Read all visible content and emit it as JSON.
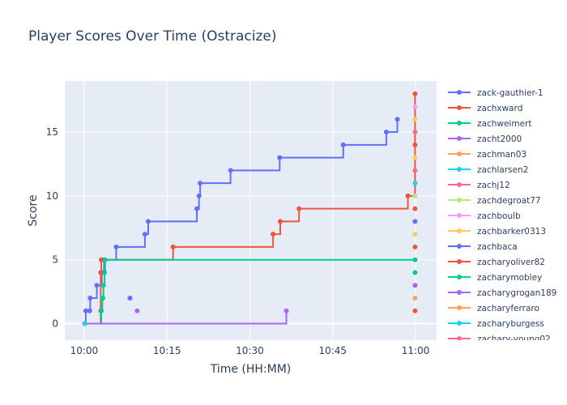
{
  "chart_data": {
    "type": "line",
    "title": "Player Scores Over Time (Ostracize)",
    "xlabel": "Time (HH:MM)",
    "ylabel": "Score",
    "x_ticks": [
      "10:00",
      "10:15",
      "10:30",
      "10:45",
      "11:00"
    ],
    "x_tick_minutes": [
      0,
      15,
      30,
      45,
      60
    ],
    "y_ticks": [
      "0",
      "5",
      "10",
      "15"
    ],
    "y_tick_values": [
      0,
      5,
      10,
      15
    ],
    "xlim_minutes": [
      -3.5,
      63.8
    ],
    "ylim": [
      -1.3,
      19.0
    ],
    "grid": true,
    "legend_placement": "right",
    "line_shape": "step-after",
    "series": [
      {
        "name": "zack-gauthier-1",
        "color": "#636efa",
        "points": [
          [
            0.1,
            0
          ],
          [
            0.3,
            1
          ],
          [
            1.0,
            1
          ],
          [
            1.1,
            2
          ],
          [
            2.3,
            3
          ],
          [
            3.2,
            4
          ],
          [
            3.6,
            5
          ],
          [
            5.8,
            6
          ],
          [
            11.0,
            7
          ],
          [
            11.6,
            8
          ],
          [
            20.4,
            9
          ],
          [
            20.8,
            10
          ],
          [
            21.0,
            11
          ],
          [
            26.5,
            12
          ],
          [
            35.4,
            13
          ],
          [
            46.9,
            14
          ],
          [
            54.7,
            15
          ],
          [
            56.7,
            16
          ]
        ]
      },
      {
        "name": "zachxward",
        "color": "#ef553b",
        "points": [
          [
            0.1,
            0
          ],
          [
            3.0,
            1
          ],
          [
            3.0,
            4
          ],
          [
            3.1,
            5
          ],
          [
            3.2,
            5
          ],
          [
            16.1,
            6
          ],
          [
            34.2,
            7
          ],
          [
            35.5,
            8
          ],
          [
            38.9,
            9
          ],
          [
            58.6,
            10
          ],
          [
            59.9,
            18
          ]
        ]
      },
      {
        "name": "zachweimert",
        "color": "#00cc96",
        "points": [
          [
            0.1,
            0
          ],
          [
            3.1,
            1
          ],
          [
            3.3,
            2
          ],
          [
            3.5,
            3
          ],
          [
            3.7,
            4
          ],
          [
            3.8,
            5
          ],
          [
            59.9,
            5
          ]
        ]
      },
      {
        "name": "zacht2000",
        "color": "#ab63fa",
        "points": [
          [
            0.1,
            0
          ],
          [
            36.6,
            1
          ]
        ]
      },
      {
        "name": "zachman03",
        "color": "#ffa15a",
        "points": [
          [
            0.1,
            0
          ]
        ]
      },
      {
        "name": "zachlarsen2",
        "color": "#19d3f3",
        "points": [
          [
            0.1,
            0
          ]
        ]
      },
      {
        "name": "zachj12",
        "color": "#ff6692",
        "points": [
          [
            59.9,
            15
          ]
        ]
      },
      {
        "name": "zachdegroat77",
        "color": "#b6e880",
        "points": [
          [
            59.9,
            10
          ]
        ]
      },
      {
        "name": "zachboulb",
        "color": "#ff97ff",
        "points": [
          [
            59.9,
            17
          ]
        ]
      },
      {
        "name": "zachbarker0313",
        "color": "#fecb52",
        "points": [
          [
            59.9,
            7
          ]
        ]
      },
      {
        "name": "zachbaca",
        "color": "#636efa",
        "points": [
          [
            59.9,
            8
          ]
        ]
      },
      {
        "name": "zacharyoliver82",
        "color": "#ef553b",
        "points": [
          [
            59.9,
            14
          ]
        ]
      },
      {
        "name": "zacharymobley",
        "color": "#00cc96",
        "points": [
          [
            59.9,
            4
          ]
        ]
      },
      {
        "name": "zacharygrogan189",
        "color": "#ab63fa",
        "points": [
          [
            59.9,
            3
          ]
        ]
      },
      {
        "name": "zacharyferraro",
        "color": "#ffa15a",
        "points": [
          [
            59.9,
            2
          ]
        ]
      },
      {
        "name": "zacharyburgess",
        "color": "#19d3f3",
        "points": [
          [
            59.9,
            11
          ]
        ]
      },
      {
        "name": "zachary-young02",
        "color": "#ff6692",
        "points": [
          [
            59.9,
            12
          ]
        ]
      }
    ],
    "extra_markers": [
      {
        "color": "#636efa",
        "x": 8.3,
        "y": 2
      },
      {
        "color": "#ab63fa",
        "x": 9.6,
        "y": 1
      },
      {
        "color": "#ef553b",
        "x": 59.9,
        "y": 1
      },
      {
        "color": "#ef553b",
        "x": 59.9,
        "y": 6
      },
      {
        "color": "#ef553b",
        "x": 59.9,
        "y": 9
      },
      {
        "color": "#fecb52",
        "x": 59.9,
        "y": 13
      },
      {
        "color": "#fecb52",
        "x": 59.9,
        "y": 16
      },
      {
        "color": "#00cc96",
        "x": 3.4,
        "y": 2
      }
    ]
  }
}
